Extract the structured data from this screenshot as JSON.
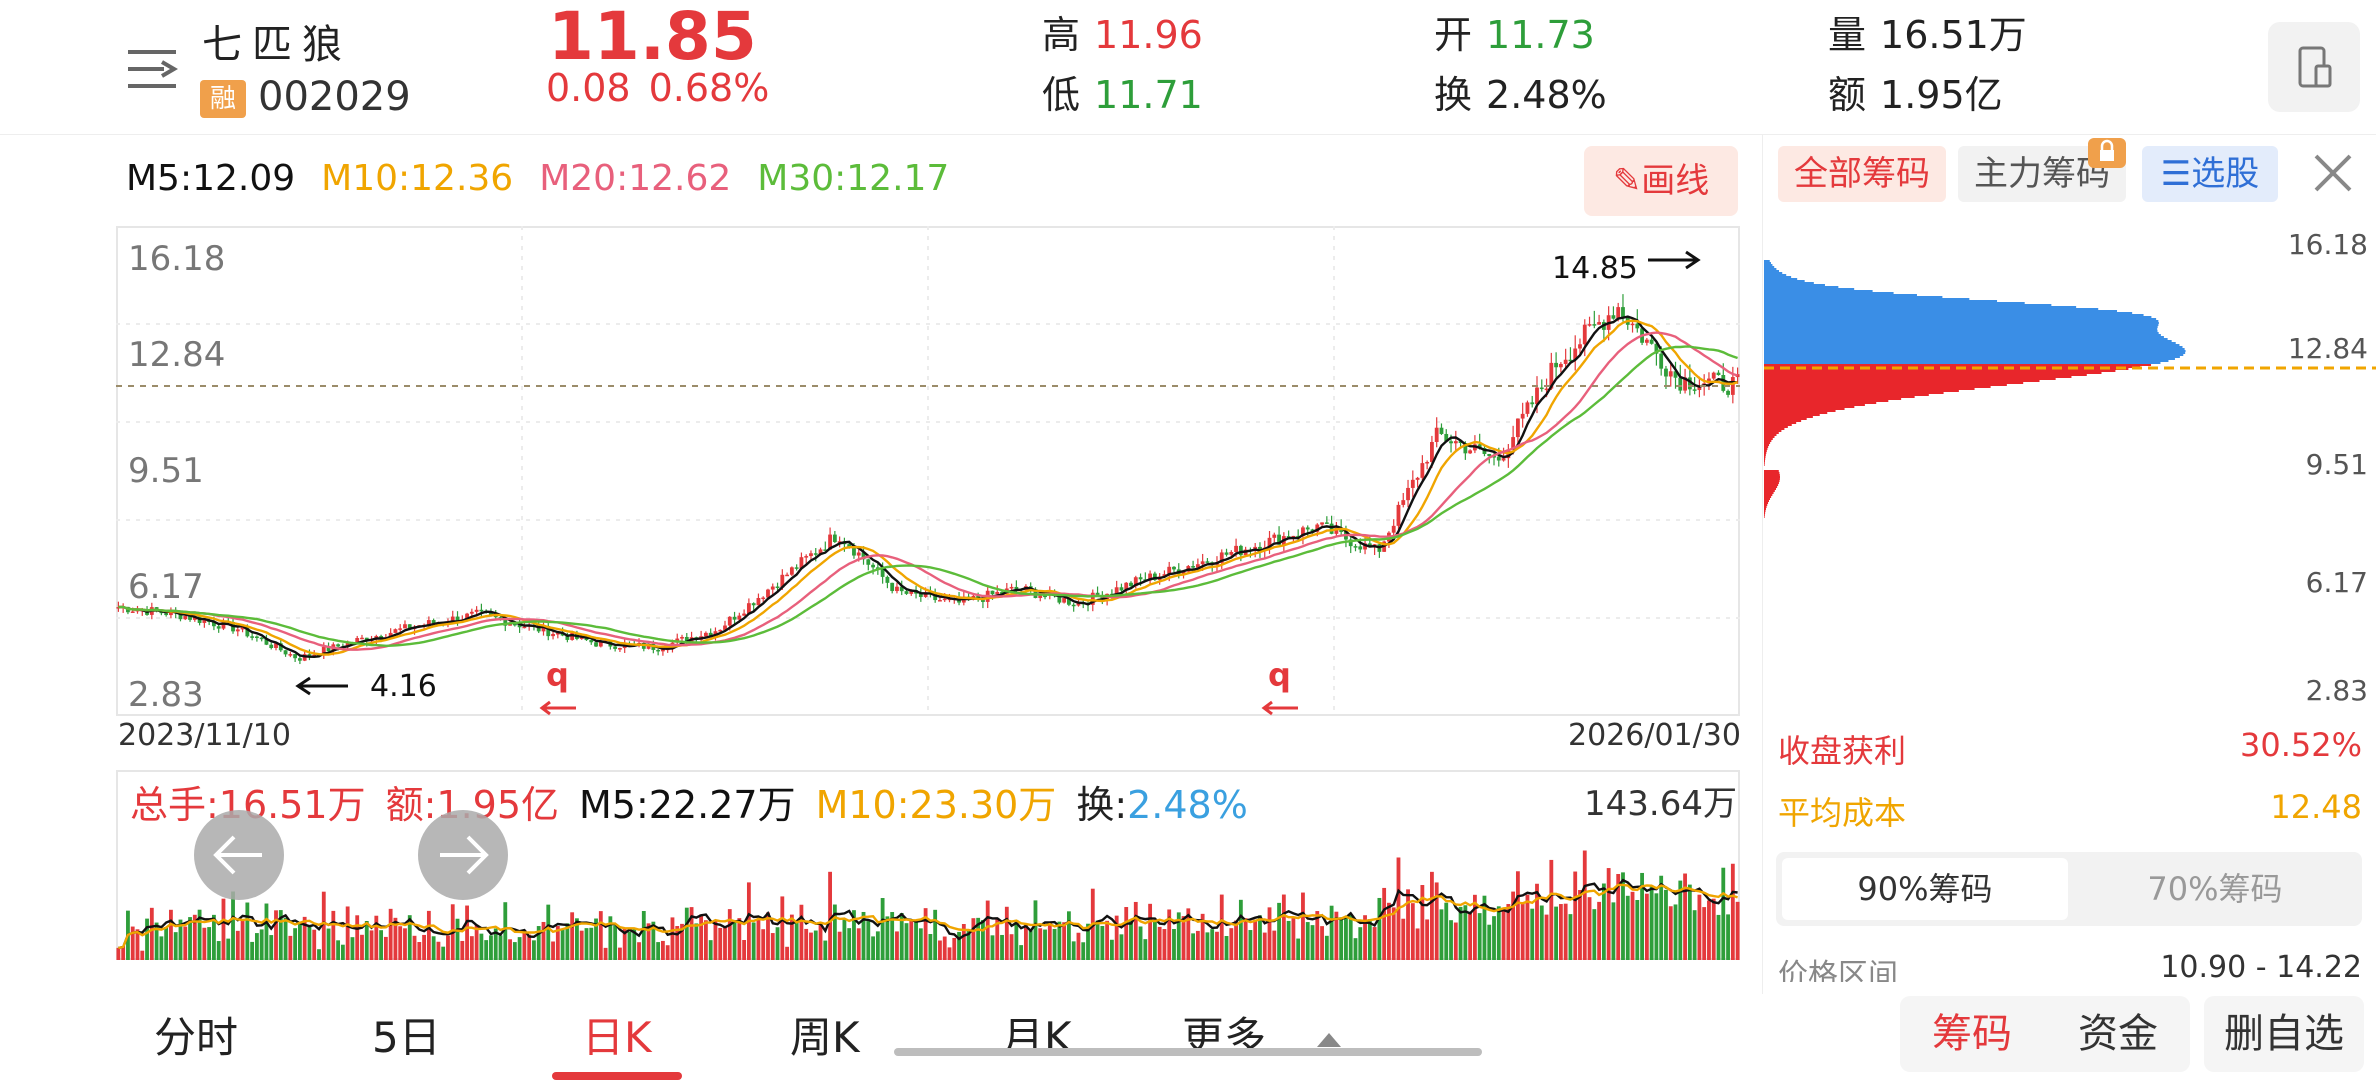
{
  "header": {
    "stock_name": "七匹狼",
    "rong_badge": "融",
    "stock_code": "002029",
    "price": "11.85",
    "change": "0.08",
    "change_pct": "0.68%",
    "high_label": "高",
    "high": "11.96",
    "low_label": "低",
    "low": "11.71",
    "open_label": "开",
    "open": "11.73",
    "turnover_label": "换",
    "turnover": "2.48%",
    "volume_label": "量",
    "volume": "16.51万",
    "amount_label": "额",
    "amount": "1.95亿"
  },
  "ma": {
    "m5": "M5:12.09",
    "m10": "M10:12.36",
    "m20": "M20:12.62",
    "m30": "M30:12.17",
    "draw_label": "画线"
  },
  "price_chart": {
    "y_ticks": [
      "16.18",
      "12.84",
      "9.51",
      "6.17",
      "2.83"
    ],
    "max_label": "14.85",
    "min_label": "4.16",
    "q_marker": "q",
    "date_start": "2023/11/10",
    "date_end": "2026/01/30"
  },
  "volume": {
    "total": "总手:16.51万",
    "amount": "额:1.95亿",
    "m5": "M5:22.27万",
    "m10": "M10:23.30万",
    "turnover_label": "换:",
    "turnover": "2.48%",
    "max": "143.64万"
  },
  "chip": {
    "tabs": [
      "全部筹码",
      "主力筹码",
      "选股"
    ],
    "y_ticks": [
      "16.18",
      "12.84",
      "9.51",
      "6.17",
      "2.83"
    ],
    "profit_label": "收盘获利",
    "profit": "30.52%",
    "avg_cost_label": "平均成本",
    "avg_cost": "12.48",
    "seg_90": "90%筹码",
    "seg_70": "70%筹码",
    "range_label": "价格区间",
    "range": "10.90 - 14.22"
  },
  "bottom": {
    "tabs": [
      "分时",
      "5日",
      "日K",
      "周K",
      "月K",
      "更多"
    ],
    "active_tab": "日K",
    "btn_chip": "筹码",
    "btn_fund": "资金",
    "btn_remove": "删自选"
  },
  "colors": {
    "up": "#e4393c",
    "down": "#2e9e3a",
    "m5": "#111111",
    "m10": "#f0a500",
    "m20": "#e8607c",
    "m30": "#5cbc3a",
    "chip_blue": "#3a8ee6",
    "chip_red": "#e8262b"
  },
  "chart_data": {
    "type": "candlestick",
    "title": "",
    "x_range": [
      "2023/11/10",
      "2026/01/30"
    ],
    "ylim": [
      2.83,
      16.18
    ],
    "y_ticks": [
      16.18,
      12.84,
      9.51,
      6.17,
      2.83
    ],
    "annotations": [
      {
        "label": "14.85",
        "kind": "period-high"
      },
      {
        "label": "4.16",
        "kind": "period-low"
      }
    ],
    "close_trend": [
      5.8,
      5.6,
      5.2,
      4.4,
      4.9,
      5.3,
      5.6,
      5.2,
      4.8,
      4.7,
      5.2,
      6.5,
      7.8,
      6.2,
      5.9,
      6.3,
      5.9,
      6.5,
      7.0,
      7.5,
      8.0,
      7.3,
      10.5,
      9.8,
      12.5,
      14.0,
      12.0,
      11.85
    ],
    "volume_max": "143.64万",
    "chip_profit_pct": 30.52,
    "chip_avg_cost": 12.48,
    "chip_range_90": [
      10.9,
      14.22
    ]
  }
}
